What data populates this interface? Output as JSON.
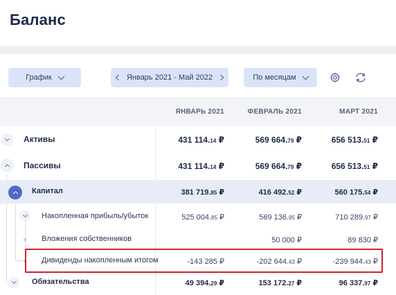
{
  "page": {
    "title": "Баланс"
  },
  "toolbar": {
    "chart_label": "График",
    "range_label": "Январь 2021 - Май 2022",
    "period_label": "По месяцам"
  },
  "icons": {
    "settings": "gear-icon",
    "refresh": "refresh-icon"
  },
  "columns": [
    "ЯНВАРЬ 2021",
    "ФЕВРАЛЬ 2021",
    "МАРТ 2021"
  ],
  "rows": [
    {
      "label": "Активы",
      "values": [
        [
          "431 114.",
          "14",
          " ₽"
        ],
        [
          "569 664.",
          "79",
          " ₽"
        ],
        [
          "656 513.",
          "51",
          " ₽"
        ]
      ]
    },
    {
      "label": "Пассивы",
      "values": [
        [
          "431 114.",
          "14",
          " ₽"
        ],
        [
          "569 664.",
          "79",
          " ₽"
        ],
        [
          "656 513.",
          "51",
          " ₽"
        ]
      ]
    },
    {
      "label": "Капитал",
      "values": [
        [
          "381 719.",
          "85",
          " ₽"
        ],
        [
          "416 492.",
          "52",
          " ₽"
        ],
        [
          "560 175.",
          "54",
          " ₽"
        ]
      ]
    },
    {
      "label": "Накопленная прибыль/убыток",
      "values": [
        [
          "525 004.",
          "85",
          " ₽"
        ],
        [
          "569 136.",
          "95",
          " ₽"
        ],
        [
          "710 289.",
          "97",
          " ₽"
        ]
      ]
    },
    {
      "label": "Вложения собственников",
      "values": [
        [
          "",
          "",
          ""
        ],
        [
          "50 000",
          "",
          " ₽"
        ],
        [
          "89 830",
          "",
          " ₽"
        ]
      ]
    },
    {
      "label": "Дивиденды накопленным итогом",
      "values": [
        [
          "-143 285",
          "",
          " ₽"
        ],
        [
          "-202 644.",
          "43",
          " ₽"
        ],
        [
          "-239 944.",
          "43",
          " ₽"
        ]
      ]
    },
    {
      "label": "Обязательства",
      "values": [
        [
          "49 394.",
          "29",
          " ₽"
        ],
        [
          "153 172.",
          "27",
          " ₽"
        ],
        [
          "96 337.",
          "97",
          " ₽"
        ]
      ]
    }
  ]
}
